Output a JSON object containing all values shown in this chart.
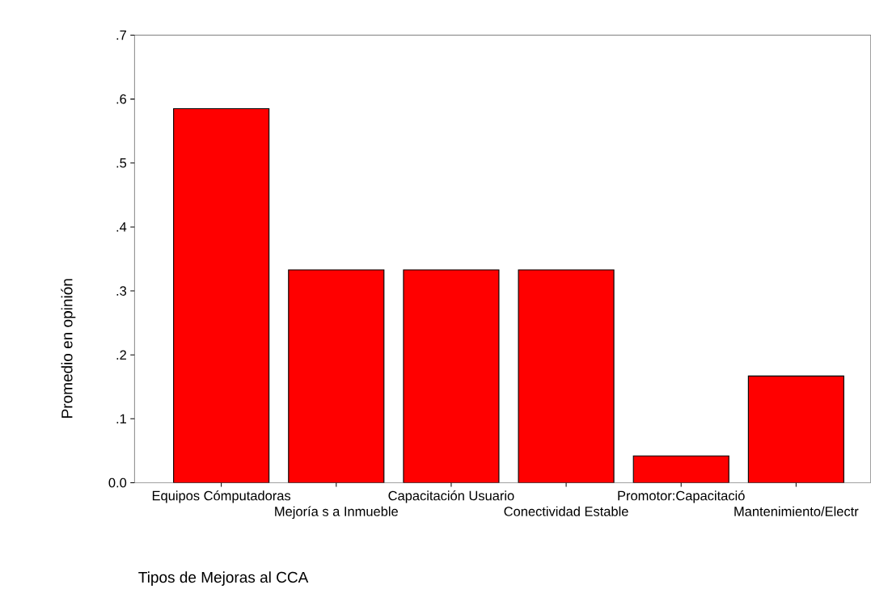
{
  "chart_data": {
    "type": "bar",
    "xlabel": "Tipos de Mejoras al CCA",
    "ylabel": "Promedio en opinión",
    "categories": [
      "Equipos Cómputadoras",
      "Mejoría s a Inmueble",
      "Capacitación Usuario",
      "Conectividad Estable",
      "Promotor:Capacitació",
      "Mantenimiento/Electr"
    ],
    "values": [
      0.585,
      0.333,
      0.333,
      0.333,
      0.042,
      0.167
    ],
    "color": "#ff0000",
    "ylim": [
      0,
      0.7
    ],
    "yticks": [
      {
        "value": 0,
        "label": "0.0"
      },
      {
        "value": 0.1,
        "label": ".1"
      },
      {
        "value": 0.2,
        "label": ".2"
      },
      {
        "value": 0.3,
        "label": ".3"
      },
      {
        "value": 0.4,
        "label": ".4"
      },
      {
        "value": 0.5,
        "label": ".5"
      },
      {
        "value": 0.6,
        "label": ".6"
      },
      {
        "value": 0.7,
        "label": ".7"
      }
    ]
  }
}
